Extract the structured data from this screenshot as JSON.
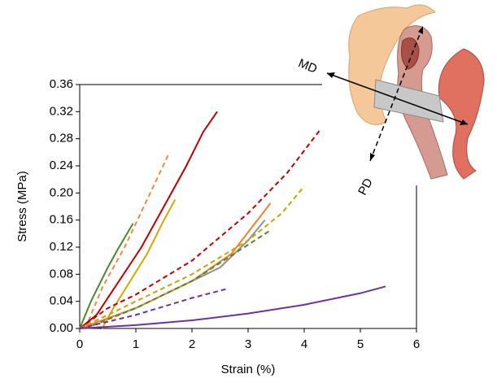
{
  "chart_data": {
    "type": "line",
    "x_label": "Strain (%)",
    "y_label": "Stress (MPa)",
    "annotations": [
      "MD",
      "PD"
    ],
    "xlim": [
      0,
      6
    ],
    "xticks": [
      0,
      1,
      2,
      3,
      4,
      5,
      6
    ],
    "ylim": [
      0,
      0.36
    ],
    "yticks": [
      {
        "value": 0,
        "label": "0.00"
      },
      0.04,
      0.08,
      0.12,
      0.16,
      {
        "value": 0.2,
        "label": "0.20"
      },
      0.24,
      0.28,
      0.32,
      0.36
    ],
    "series": [
      {
        "color": "#4a8a2a",
        "dashed": false,
        "x": [
          0,
          0.2,
          0.5,
          0.7,
          0.95
        ],
        "values": [
          0,
          0.04,
          0.09,
          0.12,
          0.155
        ]
      },
      {
        "color": "#ee8844",
        "dashed": true,
        "x": [
          0.1,
          0.4,
          0.8,
          1.2,
          1.6
        ],
        "values": [
          0,
          0.06,
          0.12,
          0.19,
          0.26
        ]
      },
      {
        "color": "#c00000",
        "dashed": false,
        "x": [
          0,
          0.3,
          0.7,
          1.1,
          1.5,
          1.9,
          2.2,
          2.45
        ],
        "values": [
          0,
          0.02,
          0.07,
          0.12,
          0.18,
          0.24,
          0.29,
          0.32
        ]
      },
      {
        "color": "#d4a800",
        "dashed": false,
        "x": [
          0.4,
          0.6,
          0.9,
          1.2,
          1.5,
          1.7
        ],
        "values": [
          0,
          0.03,
          0.07,
          0.11,
          0.16,
          0.19
        ]
      },
      {
        "color": "#c00000",
        "dashed": true,
        "x": [
          0,
          0.5,
          1,
          2,
          3,
          3.7,
          4.3
        ],
        "values": [
          0,
          0.03,
          0.05,
          0.1,
          0.17,
          0.23,
          0.295
        ]
      },
      {
        "color": "#909090",
        "dashed": false,
        "x": [
          0,
          1,
          2,
          2.5,
          3,
          3.3
        ],
        "values": [
          0,
          0.03,
          0.07,
          0.09,
          0.13,
          0.16
        ]
      },
      {
        "color": "#ee8030",
        "dashed": false,
        "x": [
          0,
          1,
          2,
          2.7,
          3.4
        ],
        "values": [
          0,
          0.03,
          0.07,
          0.11,
          0.185
        ]
      },
      {
        "color": "#c8a400",
        "dashed": true,
        "x": [
          0,
          1,
          2,
          3,
          3.6,
          4
        ],
        "values": [
          0,
          0.04,
          0.08,
          0.13,
          0.17,
          0.21
        ]
      },
      {
        "color": "#4a8a2a",
        "dashed": true,
        "x": [
          0.1,
          1,
          2,
          3.4
        ],
        "values": [
          0,
          0.03,
          0.07,
          0.145
        ]
      },
      {
        "color": "#7030a0",
        "dashed": true,
        "x": [
          0,
          1,
          2,
          2.6
        ],
        "values": [
          0,
          0.02,
          0.045,
          0.058
        ]
      },
      {
        "color": "#7030a0",
        "dashed": false,
        "x": [
          0,
          1,
          2,
          3,
          4,
          5,
          5.45
        ],
        "values": [
          0,
          0.005,
          0.012,
          0.022,
          0.035,
          0.052,
          0.062
        ]
      }
    ]
  }
}
